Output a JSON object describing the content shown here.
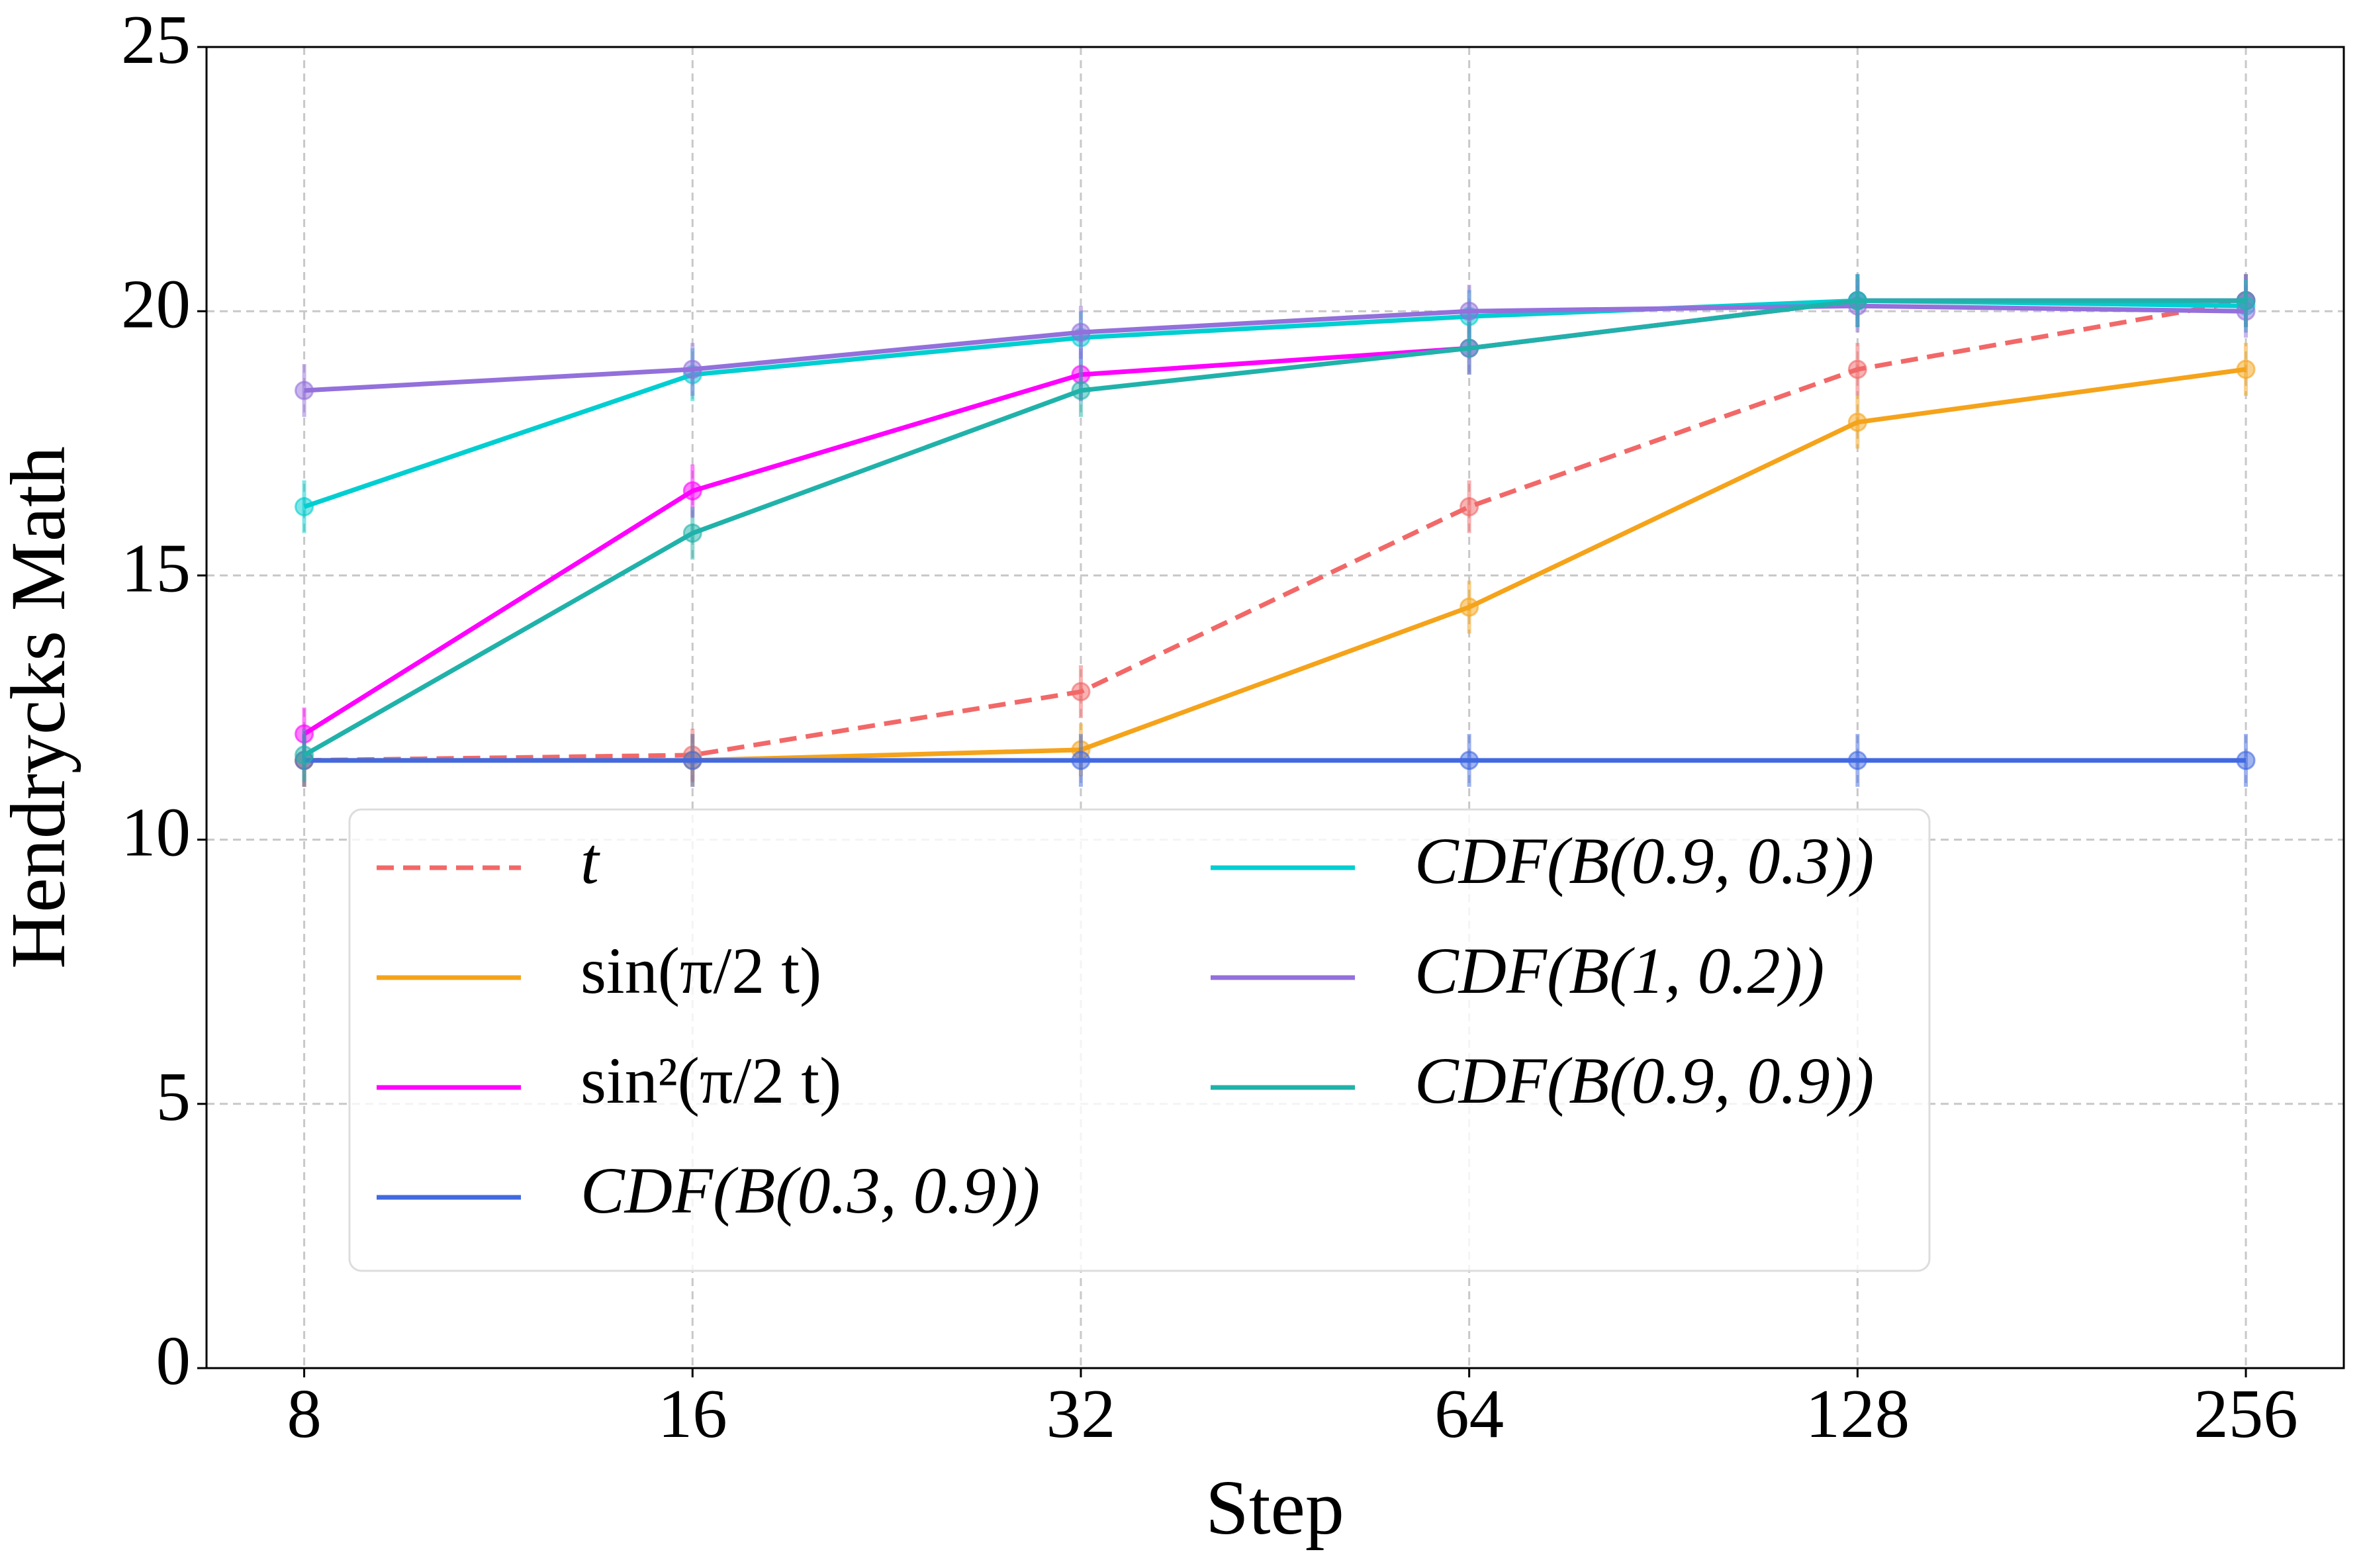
{
  "chart_data": {
    "type": "line",
    "xlabel": "Step",
    "ylabel": "Hendrycks Math",
    "x": [
      8,
      16,
      32,
      64,
      128,
      256
    ],
    "xscale": "log",
    "xlim": [
      6.72,
      304.9
    ],
    "xticks": [
      8,
      16,
      32,
      64,
      128,
      256
    ],
    "ylim": [
      0,
      25
    ],
    "yticks": [
      0,
      5,
      10,
      15,
      20,
      25
    ],
    "grid": true,
    "legend": "lower left",
    "series": [
      {
        "name": "t",
        "color": "#f26868",
        "linestyle": "dashed",
        "values": [
          11.5,
          11.6,
          12.8,
          16.3,
          18.9,
          20.2
        ],
        "errors": [
          0.5,
          0.5,
          0.5,
          0.5,
          0.5,
          0.5
        ]
      },
      {
        "name": "sin(π/2 t)",
        "color": "#f5a31a",
        "linestyle": "solid",
        "values": [
          11.5,
          11.5,
          11.7,
          14.4,
          17.9,
          18.9
        ],
        "errors": [
          0.5,
          0.5,
          0.5,
          0.5,
          0.5,
          0.5
        ]
      },
      {
        "name": "sin²(π/2 t)",
        "color": "#ff00ff",
        "linestyle": "solid",
        "values": [
          12.0,
          16.6,
          18.8,
          19.3,
          20.2,
          20.2
        ],
        "errors": [
          0.5,
          0.5,
          0.5,
          0.5,
          0.5,
          0.5
        ]
      },
      {
        "name": "CDF(B(0.3, 0.9))",
        "color": "#4169e1",
        "linestyle": "solid",
        "values": [
          11.5,
          11.5,
          11.5,
          11.5,
          11.5,
          11.5
        ],
        "errors": [
          0.5,
          0.5,
          0.5,
          0.5,
          0.5,
          0.5
        ]
      },
      {
        "name": "CDF(B(0.9, 0.3))",
        "color": "#00ced1",
        "linestyle": "solid",
        "values": [
          16.3,
          18.8,
          19.5,
          19.9,
          20.2,
          20.1
        ],
        "errors": [
          0.5,
          0.5,
          0.5,
          0.5,
          0.5,
          0.5
        ]
      },
      {
        "name": "CDF(B(1, 0.2))",
        "color": "#9370db",
        "linestyle": "solid",
        "values": [
          18.5,
          18.9,
          19.6,
          20.0,
          20.1,
          20.0
        ],
        "errors": [
          0.5,
          0.5,
          0.5,
          0.5,
          0.5,
          0.5
        ]
      },
      {
        "name": "CDF(B(0.9, 0.9))",
        "color": "#20b2aa",
        "linestyle": "solid",
        "values": [
          11.6,
          15.8,
          18.5,
          19.3,
          20.2,
          20.2
        ],
        "errors": [
          0.5,
          0.5,
          0.5,
          0.5,
          0.5,
          0.5
        ]
      }
    ]
  }
}
